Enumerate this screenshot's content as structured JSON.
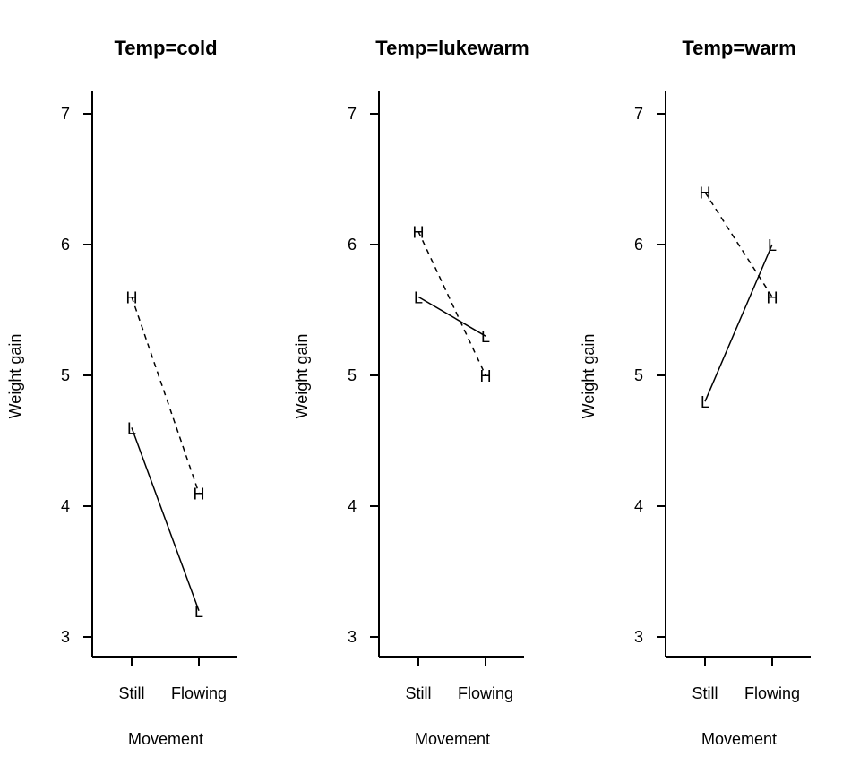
{
  "chart_data": [
    {
      "type": "line",
      "title": "Temp=cold",
      "xlabel": "Movement",
      "ylabel": "Weight gain",
      "categories": [
        "Still",
        "Flowing"
      ],
      "ylim": [
        2.85,
        7.2
      ],
      "yticks": [
        3,
        4,
        5,
        6,
        7
      ],
      "series": [
        {
          "name": "L",
          "style": "solid",
          "values": [
            4.6,
            3.2
          ]
        },
        {
          "name": "H",
          "style": "dashed",
          "values": [
            5.6,
            4.1
          ]
        }
      ]
    },
    {
      "type": "line",
      "title": "Temp=lukewarm",
      "xlabel": "Movement",
      "ylabel": "Weight gain",
      "categories": [
        "Still",
        "Flowing"
      ],
      "ylim": [
        2.85,
        7.2
      ],
      "yticks": [
        3,
        4,
        5,
        6,
        7
      ],
      "series": [
        {
          "name": "L",
          "style": "solid",
          "values": [
            5.6,
            5.3
          ]
        },
        {
          "name": "H",
          "style": "dashed",
          "values": [
            6.1,
            5.0
          ]
        }
      ]
    },
    {
      "type": "line",
      "title": "Temp=warm",
      "xlabel": "Movement",
      "ylabel": "Weight gain",
      "categories": [
        "Still",
        "Flowing"
      ],
      "ylim": [
        2.85,
        7.2
      ],
      "yticks": [
        3,
        4,
        5,
        6,
        7
      ],
      "series": [
        {
          "name": "L",
          "style": "solid",
          "values": [
            4.8,
            6.0
          ]
        },
        {
          "name": "H",
          "style": "dashed",
          "values": [
            6.4,
            5.6
          ]
        }
      ]
    }
  ]
}
